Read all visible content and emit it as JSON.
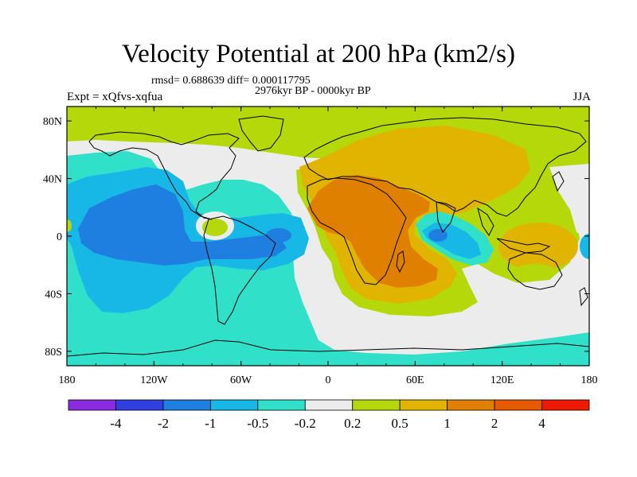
{
  "title": "Velocity Potential at 200 hPa (km2/s)",
  "stats": "rmsd= 0.688639 diff= 0.000117795",
  "period": "2976kyr BP - 0000kyr BP",
  "experiment": "Expt = xQfvs-xqfua",
  "season": "JJA",
  "map": {
    "lon_range": [
      -180,
      180
    ],
    "lat_range": [
      -90,
      90
    ],
    "x_ticks": [
      {
        "value": -180,
        "label": "180"
      },
      {
        "value": -120,
        "label": "120W"
      },
      {
        "value": -60,
        "label": "60W"
      },
      {
        "value": 0,
        "label": "0"
      },
      {
        "value": 60,
        "label": "60E"
      },
      {
        "value": 120,
        "label": "120E"
      },
      {
        "value": 180,
        "label": "180"
      }
    ],
    "y_ticks": [
      {
        "value": 80,
        "label": "80N"
      },
      {
        "value": 40,
        "label": "40N"
      },
      {
        "value": 0,
        "label": "0"
      },
      {
        "value": -40,
        "label": "40S"
      },
      {
        "value": -80,
        "label": "80S"
      }
    ]
  },
  "colorbar": {
    "colors": [
      "#8a2be2",
      "#2f3fe0",
      "#1f7fe0",
      "#18b8e6",
      "#30e0c8",
      "#ececec",
      "#b4d80a",
      "#e0b400",
      "#e08000",
      "#e85a00",
      "#ee1a00"
    ],
    "labels": [
      "-4",
      "-2",
      "-1",
      "-0.5",
      "-0.2",
      "0.2",
      "0.5",
      "1",
      "2",
      "4"
    ]
  }
}
